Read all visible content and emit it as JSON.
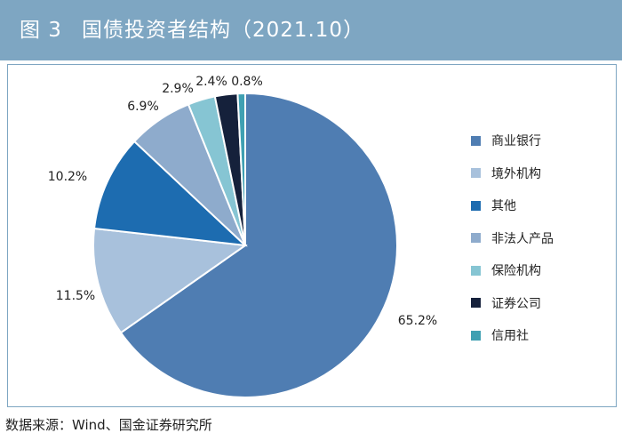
{
  "figure": {
    "number": "图 3",
    "title": "国债投资者结构（2021.10）"
  },
  "source": "数据来源：Wind、国金证券研究所",
  "chart_data": {
    "type": "pie",
    "slices": [
      {
        "label": "商业银行",
        "value": 65.2,
        "value_label": "65.2%",
        "color": "#4f7db2"
      },
      {
        "label": "境外机构",
        "value": 11.5,
        "value_label": "11.5%",
        "color": "#a8c1dc"
      },
      {
        "label": "其他",
        "value": 10.2,
        "value_label": "10.2%",
        "color": "#1d6cb0"
      },
      {
        "label": "非法人产品",
        "value": 6.9,
        "value_label": "6.9%",
        "color": "#8eabcc"
      },
      {
        "label": "保险机构",
        "value": 2.9,
        "value_label": "2.9%",
        "color": "#86c5d3"
      },
      {
        "label": "证券公司",
        "value": 2.4,
        "value_label": "2.4%",
        "color": "#15213b"
      },
      {
        "label": "信用社",
        "value": 0.8,
        "value_label": "0.8%",
        "color": "#3fa0b2"
      }
    ],
    "legend_position": "right",
    "start": "12 o'clock",
    "direction": "clockwise"
  }
}
